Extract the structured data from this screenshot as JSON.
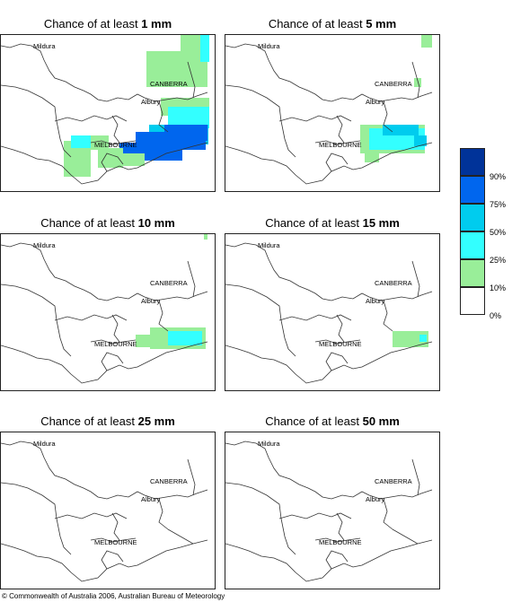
{
  "panels": [
    {
      "prefix": "Chance of at least ",
      "amount": "1 mm"
    },
    {
      "prefix": "Chance of at least ",
      "amount": "5 mm"
    },
    {
      "prefix": "Chance of at least ",
      "amount": "10 mm"
    },
    {
      "prefix": "Chance of at least ",
      "amount": "15 mm"
    },
    {
      "prefix": "Chance of at least ",
      "amount": "25 mm"
    },
    {
      "prefix": "Chance of at least ",
      "amount": "50 mm"
    }
  ],
  "places": {
    "mildura": "Mildura",
    "canberra": "CANBERRA",
    "albury": "Albury",
    "melbourne": "MELBOURNE"
  },
  "legend": {
    "labels": [
      "90%",
      "75%",
      "50%",
      "25%",
      "10%",
      "0%"
    ],
    "colors": [
      "#003399",
      "#0066ee",
      "#00ccee",
      "#33ffff",
      "#99ee99",
      "#ffffff"
    ]
  },
  "copyright": "© Commonwealth of Australia 2006, Australian Bureau of Meteorology"
}
